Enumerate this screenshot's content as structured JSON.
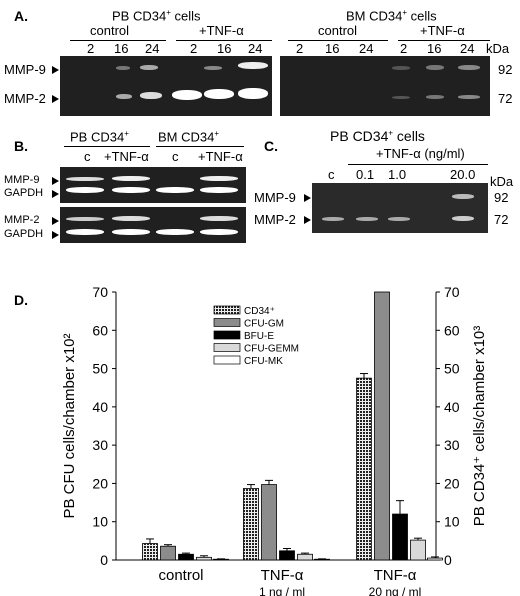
{
  "panelA": {
    "letter": "A.",
    "left_title": "PB CD34",
    "left_title_sup": "+",
    "left_title_tail": " cells",
    "right_title": "BM CD34",
    "right_title_sup": "+",
    "right_title_tail": " cells",
    "control_label": "control",
    "tnf_label": "+TNF-α",
    "lanes": [
      "2",
      "16",
      "24",
      "2",
      "16",
      "24"
    ],
    "kda": "kDa",
    "mmp9": "MMP-9",
    "mmp2": "MMP-2",
    "mw92": "92",
    "mw72": "72"
  },
  "panelB": {
    "letter": "B.",
    "pb_title": "PB CD34",
    "bm_title": "BM CD34",
    "sup": "+",
    "lanes": [
      "c",
      "+TNF-α",
      "c",
      "+TNF-α"
    ],
    "mmp9": "MMP-9",
    "gapdh1": "GAPDH",
    "mmp2": "MMP-2",
    "gapdh2": "GAPDH"
  },
  "panelC": {
    "letter": "C.",
    "title": "PB CD34",
    "title_sup": "+",
    "title_tail": " cells",
    "tnf_label": "+TNF-α (ng/ml)",
    "lanes": [
      "c",
      "0.1",
      "1.0",
      "20.0"
    ],
    "kda": "kDa",
    "mmp9": "MMP-9",
    "mmp2": "MMP-2",
    "mw92": "92",
    "mw72": "72"
  },
  "panelD": {
    "letter": "D."
  },
  "chart_data": {
    "type": "bar",
    "categories": [
      "control",
      "TNF-α",
      "TNF-α"
    ],
    "category_sublabels": [
      "",
      "1 ng / ml",
      "20 ng / ml"
    ],
    "ylabel": "PB CFU cells/chamber x10²",
    "ylabel_right": "PB CD34⁺ cells/chamber x10³",
    "ylim": [
      0,
      70
    ],
    "yticks": [
      0,
      10,
      20,
      30,
      40,
      50,
      60,
      70
    ],
    "legend_position": "top-center",
    "series": [
      {
        "name": "CD34⁺",
        "values": [
          4.3,
          18.7,
          47.5
        ],
        "errors": [
          1.2,
          1.0,
          1.2
        ],
        "color": "#3a3a3a"
      },
      {
        "name": "CFU-GM",
        "values": [
          3.6,
          19.7,
          70
        ],
        "errors": [
          0.4,
          1.1,
          0
        ],
        "color": "#8c8c8c"
      },
      {
        "name": "BFU-E",
        "values": [
          1.5,
          2.4,
          12.0
        ],
        "errors": [
          0.3,
          0.6,
          3.5
        ],
        "color": "#000000"
      },
      {
        "name": "CFU-GEMM",
        "values": [
          0.7,
          1.5,
          5.2
        ],
        "errors": [
          0.4,
          0.3,
          0.5
        ],
        "color": "#d9d9d9"
      },
      {
        "name": "CFU-MK",
        "values": [
          0.2,
          0.2,
          0.5
        ],
        "errors": [
          0.1,
          0.1,
          0.3
        ],
        "color": "#ffffff"
      }
    ]
  }
}
